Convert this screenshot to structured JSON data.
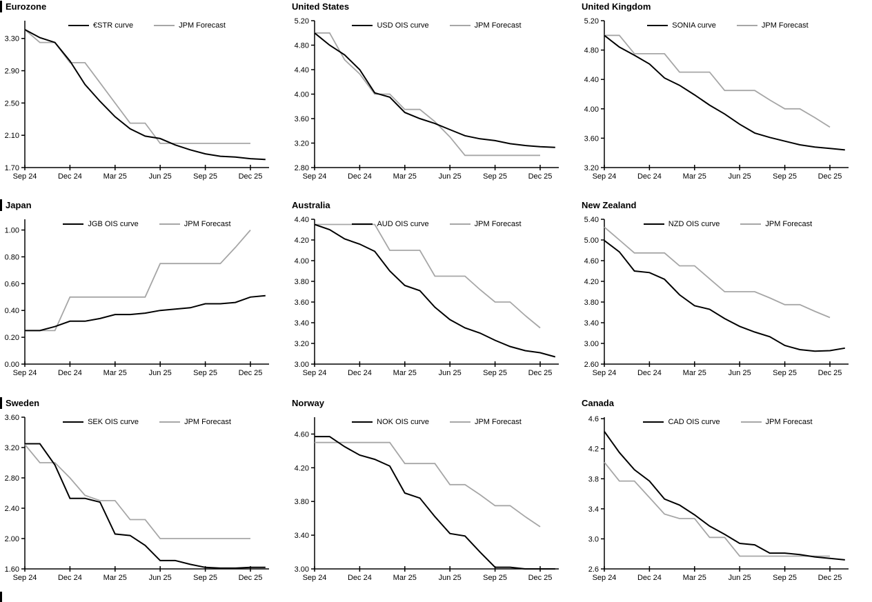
{
  "colors": {
    "curve": "#000000",
    "forecast": "#a6a6a6",
    "axis": "#000000",
    "text": "#000000",
    "background": "#ffffff"
  },
  "x_tick_labels": [
    "Sep 24",
    "Dec 24",
    "Mar 25",
    "Jun 25",
    "Sep 25",
    "Dec 25"
  ],
  "x_months": [
    "Sep 24",
    "Oct 24",
    "Nov 24",
    "Dec 24",
    "Jan 25",
    "Feb 25",
    "Mar 25",
    "Apr 25",
    "May 25",
    "Jun 25",
    "Jul 25",
    "Aug 25",
    "Sep 25",
    "Oct 25",
    "Nov 25",
    "Dec 25",
    "Jan 26"
  ],
  "chart_data": [
    {
      "title": "Eurozone",
      "type": "line",
      "legend_position": "top",
      "grid": false,
      "y_axis": {
        "tick_labels": [
          "1.70",
          "2.10",
          "2.50",
          "2.90",
          "3.30"
        ],
        "min": 1.7,
        "max": 3.52
      },
      "series": [
        {
          "name": "€STR curve",
          "role": "ois-curve",
          "color_key": "curve",
          "values": [
            3.41,
            3.31,
            3.25,
            3.02,
            2.73,
            2.52,
            2.33,
            2.18,
            2.09,
            2.06,
            1.98,
            1.92,
            1.87,
            1.84,
            1.83,
            1.81,
            1.8
          ]
        },
        {
          "name": "JPM Forecast",
          "role": "jpm-forecast",
          "color_key": "forecast",
          "values": [
            3.41,
            3.25,
            3.25,
            3.0,
            3.0,
            2.75,
            2.5,
            2.25,
            2.25,
            2.0,
            2.0,
            2.0,
            2.0,
            2.0,
            2.0,
            2.0
          ]
        }
      ]
    },
    {
      "title": "United States",
      "type": "line",
      "legend_position": "top",
      "grid": false,
      "y_axis": {
        "tick_labels": [
          "2.80",
          "3.20",
          "3.60",
          "4.00",
          "4.40",
          "4.80",
          "5.20"
        ],
        "min": 2.8,
        "max": 5.2
      },
      "series": [
        {
          "name": "USD OIS curve",
          "role": "ois-curve",
          "color_key": "curve",
          "values": [
            5.0,
            4.8,
            4.64,
            4.4,
            4.02,
            3.95,
            3.7,
            3.6,
            3.52,
            3.42,
            3.32,
            3.27,
            3.24,
            3.19,
            3.16,
            3.14,
            3.13
          ]
        },
        {
          "name": "JPM Forecast",
          "role": "jpm-forecast",
          "color_key": "forecast",
          "values": [
            5.0,
            5.0,
            4.56,
            4.33,
            4.0,
            4.0,
            3.75,
            3.75,
            3.55,
            3.3,
            3.0,
            3.0,
            3.0,
            3.0,
            3.0,
            3.0
          ]
        }
      ]
    },
    {
      "title": "United Kingdom",
      "type": "line",
      "legend_position": "top",
      "grid": false,
      "y_axis": {
        "tick_labels": [
          "3.20",
          "3.60",
          "4.00",
          "4.40",
          "4.80",
          "5.20"
        ],
        "min": 3.2,
        "max": 5.2
      },
      "series": [
        {
          "name": "SONIA curve",
          "role": "ois-curve",
          "color_key": "curve",
          "values": [
            5.0,
            4.84,
            4.73,
            4.61,
            4.42,
            4.32,
            4.19,
            4.05,
            3.93,
            3.79,
            3.67,
            3.61,
            3.56,
            3.51,
            3.48,
            3.46,
            3.44
          ]
        },
        {
          "name": "JPM Forecast",
          "role": "jpm-forecast",
          "color_key": "forecast",
          "values": [
            5.0,
            5.0,
            4.75,
            4.75,
            4.75,
            4.5,
            4.5,
            4.5,
            4.25,
            4.25,
            4.25,
            4.12,
            4.0,
            4.0,
            3.88,
            3.75
          ]
        }
      ]
    },
    {
      "title": "Japan",
      "type": "line",
      "legend_position": "top",
      "grid": false,
      "y_axis": {
        "tick_labels": [
          "0.00",
          "0.20",
          "0.40",
          "0.60",
          "0.80",
          "1.00"
        ],
        "min": 0.0,
        "max": 1.08
      },
      "series": [
        {
          "name": "JGB OIS curve",
          "role": "ois-curve",
          "color_key": "curve",
          "values": [
            0.25,
            0.25,
            0.28,
            0.32,
            0.32,
            0.34,
            0.37,
            0.37,
            0.38,
            0.4,
            0.41,
            0.42,
            0.45,
            0.45,
            0.46,
            0.5,
            0.51
          ]
        },
        {
          "name": "JPM Forecast",
          "role": "jpm-forecast",
          "color_key": "forecast",
          "values": [
            0.25,
            0.25,
            0.25,
            0.5,
            0.5,
            0.5,
            0.5,
            0.5,
            0.5,
            0.75,
            0.75,
            0.75,
            0.75,
            0.75,
            0.87,
            1.0
          ]
        }
      ]
    },
    {
      "title": "Australia",
      "type": "line",
      "legend_position": "top",
      "grid": false,
      "y_axis": {
        "tick_labels": [
          "3.00",
          "3.20",
          "3.40",
          "3.60",
          "3.80",
          "4.00",
          "4.20",
          "4.40"
        ],
        "min": 3.0,
        "max": 4.4
      },
      "series": [
        {
          "name": "AUD OIS curve",
          "role": "ois-curve",
          "color_key": "curve",
          "values": [
            4.35,
            4.3,
            4.21,
            4.16,
            4.09,
            3.9,
            3.76,
            3.71,
            3.55,
            3.43,
            3.35,
            3.3,
            3.23,
            3.17,
            3.13,
            3.11,
            3.07
          ]
        },
        {
          "name": "JPM Forecast",
          "role": "jpm-forecast",
          "color_key": "forecast",
          "values": [
            4.35,
            4.35,
            4.35,
            4.35,
            4.35,
            4.1,
            4.1,
            4.1,
            3.85,
            3.85,
            3.85,
            3.72,
            3.6,
            3.6,
            3.47,
            3.35
          ]
        }
      ]
    },
    {
      "title": "New Zealand",
      "type": "line",
      "legend_position": "top",
      "grid": false,
      "y_axis": {
        "tick_labels": [
          "2.60",
          "3.00",
          "3.40",
          "3.80",
          "4.20",
          "4.60",
          "5.00",
          "5.40"
        ],
        "min": 2.6,
        "max": 5.4
      },
      "series": [
        {
          "name": "NZD OIS curve",
          "role": "ois-curve",
          "color_key": "curve",
          "values": [
            4.99,
            4.77,
            4.4,
            4.37,
            4.24,
            3.94,
            3.73,
            3.66,
            3.48,
            3.33,
            3.22,
            3.13,
            2.96,
            2.88,
            2.85,
            2.86,
            2.91
          ]
        },
        {
          "name": "JPM Forecast",
          "role": "jpm-forecast",
          "color_key": "forecast",
          "values": [
            5.25,
            5.0,
            4.75,
            4.75,
            4.75,
            4.5,
            4.5,
            4.25,
            4.0,
            4.0,
            4.0,
            3.88,
            3.75,
            3.75,
            3.62,
            3.5
          ]
        }
      ]
    },
    {
      "title": "Sweden",
      "type": "line",
      "legend_position": "top",
      "grid": false,
      "y_axis": {
        "tick_labels": [
          "1.60",
          "2.00",
          "2.40",
          "2.80",
          "3.20",
          "3.60"
        ],
        "min": 1.6,
        "max": 3.6
      },
      "series": [
        {
          "name": "SEK OIS curve",
          "role": "ois-curve",
          "color_key": "curve",
          "values": [
            3.25,
            3.25,
            2.97,
            2.53,
            2.53,
            2.48,
            2.06,
            2.04,
            1.91,
            1.71,
            1.71,
            1.66,
            1.62,
            1.61,
            1.61,
            1.62,
            1.62
          ]
        },
        {
          "name": "JPM Forecast",
          "role": "jpm-forecast",
          "color_key": "forecast",
          "values": [
            3.24,
            3.0,
            3.0,
            2.8,
            2.57,
            2.5,
            2.5,
            2.25,
            2.25,
            2.0,
            2.0,
            2.0,
            2.0,
            2.0,
            2.0,
            2.0
          ]
        }
      ]
    },
    {
      "title": "Norway",
      "type": "line",
      "legend_position": "top",
      "grid": false,
      "y_axis": {
        "tick_labels": [
          "3.00",
          "3.40",
          "3.80",
          "4.20",
          "4.60"
        ],
        "min": 3.0,
        "max": 4.8
      },
      "series": [
        {
          "name": "NOK OIS curve",
          "role": "ois-curve",
          "color_key": "curve",
          "values": [
            4.57,
            4.57,
            4.45,
            4.35,
            4.3,
            4.22,
            3.9,
            3.84,
            3.62,
            3.42,
            3.39,
            3.2,
            3.02,
            3.02,
            3.0,
            3.0,
            3.0
          ]
        },
        {
          "name": "JPM Forecast",
          "role": "jpm-forecast",
          "color_key": "forecast",
          "values": [
            4.5,
            4.5,
            4.5,
            4.5,
            4.5,
            4.5,
            4.25,
            4.25,
            4.25,
            4.0,
            4.0,
            3.88,
            3.75,
            3.75,
            3.62,
            3.5
          ]
        }
      ]
    },
    {
      "title": "Canada",
      "type": "line",
      "legend_position": "top",
      "grid": false,
      "y_axis": {
        "tick_labels": [
          "2.6",
          "3.0",
          "3.4",
          "3.8",
          "4.2",
          "4.6"
        ],
        "min": 2.6,
        "max": 4.62
      },
      "series": [
        {
          "name": "CAD OIS curve",
          "role": "ois-curve",
          "color_key": "curve",
          "values": [
            4.43,
            4.15,
            3.92,
            3.77,
            3.53,
            3.45,
            3.32,
            3.17,
            3.06,
            2.94,
            2.92,
            2.81,
            2.81,
            2.79,
            2.76,
            2.74,
            2.72
          ]
        },
        {
          "name": "JPM Forecast",
          "role": "jpm-forecast",
          "color_key": "forecast",
          "values": [
            4.02,
            3.77,
            3.77,
            3.55,
            3.33,
            3.27,
            3.27,
            3.02,
            3.02,
            2.77,
            2.77,
            2.77,
            2.77,
            2.77,
            2.77,
            2.77
          ]
        }
      ]
    }
  ]
}
